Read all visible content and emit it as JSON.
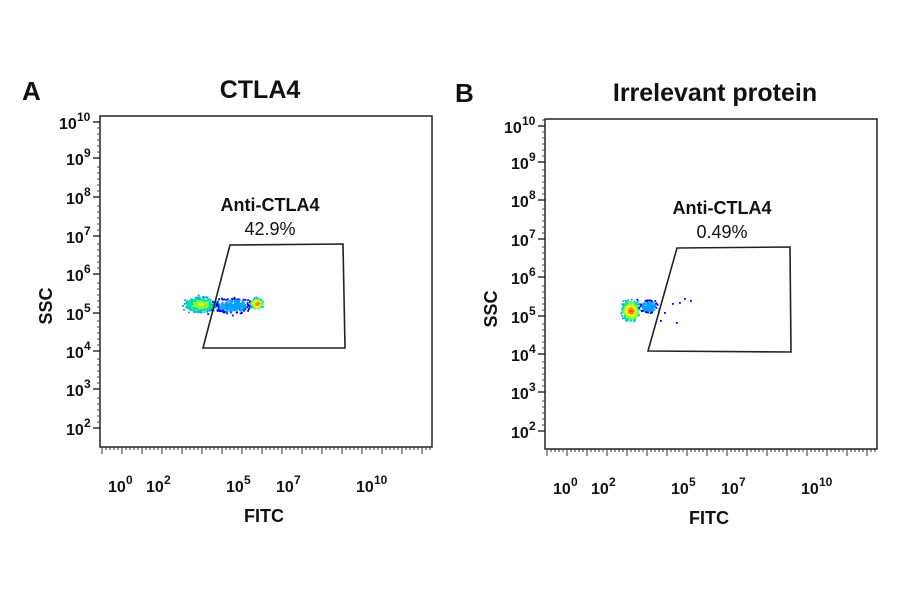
{
  "chart_data": [
    {
      "type": "scatter",
      "panel_label": "A",
      "title": "CTLA4",
      "xlabel": "FITC",
      "ylabel": "SSC",
      "x_tick_labels": [
        {
          "base": "10",
          "exp": "0"
        },
        {
          "base": "10",
          "exp": "2"
        },
        {
          "base": "10",
          "exp": "5"
        },
        {
          "base": "10",
          "exp": "7"
        },
        {
          "base": "10",
          "exp": "10"
        }
      ],
      "y_tick_labels": [
        {
          "base": "10",
          "exp": "10"
        },
        {
          "base": "10",
          "exp": "9"
        },
        {
          "base": "10",
          "exp": "8"
        },
        {
          "base": "10",
          "exp": "7"
        },
        {
          "base": "10",
          "exp": "6"
        },
        {
          "base": "10",
          "exp": "5"
        },
        {
          "base": "10",
          "exp": "4"
        },
        {
          "base": "10",
          "exp": "3"
        },
        {
          "base": "10",
          "exp": "2"
        }
      ],
      "gate": {
        "name": "Anti-CTLA4",
        "percent": "42.9%"
      },
      "population": {
        "fitc_log_range": [
          2.5,
          6.5
        ],
        "ssc_log_center": 5,
        "peaks": [
          "low FITC (green/yellow)",
          "high FITC (red)"
        ]
      }
    },
    {
      "type": "scatter",
      "panel_label": "B",
      "title": "Irrelevant protein",
      "xlabel": "FITC",
      "ylabel": "SSC",
      "x_tick_labels": [
        {
          "base": "10",
          "exp": "0"
        },
        {
          "base": "10",
          "exp": "2"
        },
        {
          "base": "10",
          "exp": "5"
        },
        {
          "base": "10",
          "exp": "7"
        },
        {
          "base": "10",
          "exp": "10"
        }
      ],
      "y_tick_labels": [
        {
          "base": "10",
          "exp": "10"
        },
        {
          "base": "10",
          "exp": "9"
        },
        {
          "base": "10",
          "exp": "8"
        },
        {
          "base": "10",
          "exp": "7"
        },
        {
          "base": "10",
          "exp": "6"
        },
        {
          "base": "10",
          "exp": "5"
        },
        {
          "base": "10",
          "exp": "4"
        },
        {
          "base": "10",
          "exp": "3"
        },
        {
          "base": "10",
          "exp": "2"
        }
      ],
      "gate": {
        "name": "Anti-CTLA4",
        "percent": "0.49%"
      },
      "population": {
        "fitc_log_range": [
          2.5,
          4
        ],
        "ssc_log_center": 5,
        "peaks": [
          "low FITC (red)"
        ]
      }
    }
  ],
  "colors": {
    "axis": "#111111",
    "density": [
      "#0000ff",
      "#00a0ff",
      "#00e0a0",
      "#80ff40",
      "#ffff00",
      "#ff8000",
      "#ff0000"
    ]
  }
}
